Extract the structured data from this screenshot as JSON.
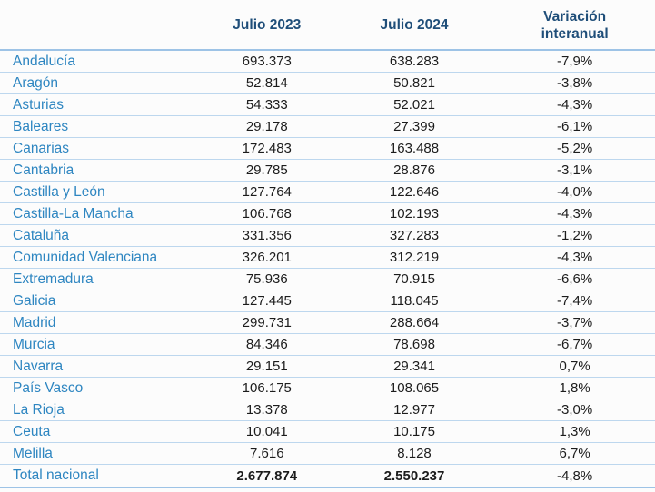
{
  "chart_data": {
    "type": "table",
    "columns": [
      "",
      "Julio 2023",
      "Julio 2024",
      "Variación interanual"
    ],
    "rows": [
      {
        "region": "Andalucía",
        "jul2023": "693.373",
        "jul2024": "638.283",
        "variation": "-7,9%"
      },
      {
        "region": "Aragón",
        "jul2023": "52.814",
        "jul2024": "50.821",
        "variation": "-3,8%"
      },
      {
        "region": "Asturias",
        "jul2023": "54.333",
        "jul2024": "52.021",
        "variation": "-4,3%"
      },
      {
        "region": "Baleares",
        "jul2023": "29.178",
        "jul2024": "27.399",
        "variation": "-6,1%"
      },
      {
        "region": "Canarias",
        "jul2023": "172.483",
        "jul2024": "163.488",
        "variation": "-5,2%"
      },
      {
        "region": "Cantabria",
        "jul2023": "29.785",
        "jul2024": "28.876",
        "variation": "-3,1%"
      },
      {
        "region": "Castilla y León",
        "jul2023": "127.764",
        "jul2024": "122.646",
        "variation": "-4,0%"
      },
      {
        "region": "Castilla-La Mancha",
        "jul2023": "106.768",
        "jul2024": "102.193",
        "variation": "-4,3%"
      },
      {
        "region": "Cataluña",
        "jul2023": "331.356",
        "jul2024": "327.283",
        "variation": "-1,2%"
      },
      {
        "region": "Comunidad Valenciana",
        "jul2023": "326.201",
        "jul2024": "312.219",
        "variation": "-4,3%"
      },
      {
        "region": "Extremadura",
        "jul2023": "75.936",
        "jul2024": "70.915",
        "variation": "-6,6%"
      },
      {
        "region": "Galicia",
        "jul2023": "127.445",
        "jul2024": "118.045",
        "variation": "-7,4%"
      },
      {
        "region": "Madrid",
        "jul2023": "299.731",
        "jul2024": "288.664",
        "variation": "-3,7%"
      },
      {
        "region": "Murcia",
        "jul2023": "84.346",
        "jul2024": "78.698",
        "variation": "-6,7%"
      },
      {
        "region": "Navarra",
        "jul2023": "29.151",
        "jul2024": "29.341",
        "variation": "0,7%"
      },
      {
        "region": "País Vasco",
        "jul2023": "106.175",
        "jul2024": "108.065",
        "variation": "1,8%"
      },
      {
        "region": "La Rioja",
        "jul2023": "13.378",
        "jul2024": "12.977",
        "variation": "-3,0%"
      },
      {
        "region": "Ceuta",
        "jul2023": "10.041",
        "jul2024": "10.175",
        "variation": "1,3%"
      },
      {
        "region": "Melilla",
        "jul2023": "7.616",
        "jul2024": "8.128",
        "variation": "6,7%"
      }
    ],
    "total_row": {
      "region": "Total nacional",
      "jul2023": "2.677.874",
      "jul2024": "2.550.237",
      "variation": "-4,8%"
    },
    "layout": {
      "grid": "horizontal-rules-only",
      "numbers_align": "center"
    }
  },
  "colors": {
    "header_text": "#1f4e79",
    "region_text": "#2e86c1",
    "number_text": "#1c1c1c",
    "row_rule": "#bdd7ee",
    "strong_rule": "#9dc3e6",
    "background": "#fcfcfc"
  }
}
